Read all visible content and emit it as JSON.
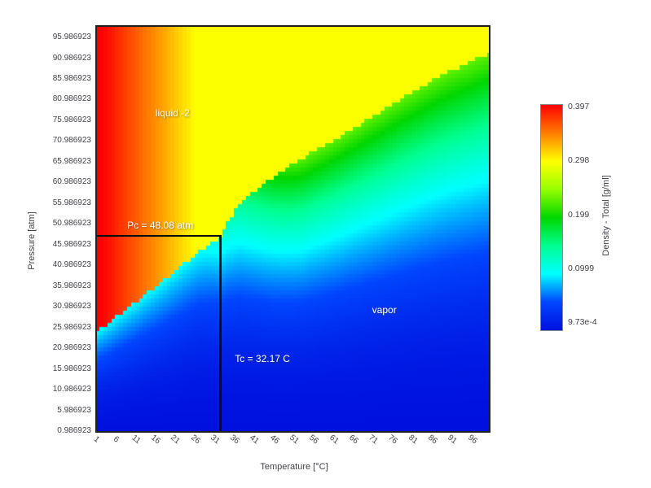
{
  "chart_data": {
    "type": "heatmap",
    "title": "",
    "xlabel": "Temperature [°C]",
    "ylabel": "Pressure [atm]",
    "x_tick_labels": [
      "1",
      "6",
      "11",
      "16",
      "21",
      "26",
      "31",
      "36",
      "41",
      "46",
      "51",
      "56",
      "61",
      "66",
      "71",
      "76",
      "81",
      "86",
      "91",
      "96"
    ],
    "y_tick_labels": [
      "95.986923",
      "90.986923",
      "85.986923",
      "80.986923",
      "75.986923",
      "70.986923",
      "65.986923",
      "60.986923",
      "55.986923",
      "50.986923",
      "45.986923",
      "40.986923",
      "35.986923",
      "30.986923",
      "25.986923",
      "20.986923",
      "15.986923",
      "10.986923",
      "5.986923",
      "0.986923"
    ],
    "x_range_c": [
      1,
      100
    ],
    "y_range_atm": [
      0.986923,
      98.54
    ],
    "grid": false,
    "legend_position": "none",
    "annotations": [
      {
        "id": "liquid",
        "text": "liquid -2",
        "T_c": 20.1,
        "P_atm": 77.7
      },
      {
        "id": "pc",
        "text": "Pc = 48.08 atm",
        "T_c": 17.0,
        "P_atm": 50.6
      },
      {
        "id": "tc",
        "text": "Tc = 32.17 C",
        "T_c": 42.8,
        "P_atm": 18.4
      },
      {
        "id": "vapor",
        "text": "vapor",
        "T_c": 73.6,
        "P_atm": 30.2
      }
    ],
    "critical_point": {
      "Tc_c": 32.17,
      "Pc_atm": 48.08
    },
    "phase_boundary_T_Patm": [
      [
        1,
        25.2
      ],
      [
        6,
        28.8
      ],
      [
        11,
        32.4
      ],
      [
        16,
        36.1
      ],
      [
        21,
        39.9
      ],
      [
        26,
        43.8
      ],
      [
        30,
        46.6
      ],
      [
        32.17,
        48.08
      ],
      [
        34,
        51.5
      ],
      [
        37.2,
        56.0
      ],
      [
        42,
        60.0
      ],
      [
        48,
        64.0
      ],
      [
        55,
        68.2
      ],
      [
        62.9,
        72.4
      ],
      [
        69.1,
        76.1
      ],
      [
        78.4,
        81.6
      ],
      [
        88,
        87.0
      ],
      [
        101,
        92.6
      ]
    ],
    "density_field": {
      "units": "g/ml",
      "min": 0,
      "max": 0.397,
      "liquid_rho_intercept": 0.406,
      "liquid_rho_slope_per_c": 0.0042,
      "liquid_rho_plateau": 0.2962,
      "vapor_rho_at_boundary_min": 0.1,
      "vapor_rho_at_boundary_span": 0.13,
      "vapor_boundary_ramp_start_c": 25,
      "vapor_boundary_ramp_width_c": 30,
      "vapor_pressure_exponent": 2.1,
      "grid_step_T_c": 1,
      "grid_step_P_bar": 1,
      "bar_to_atm": 0.986923
    },
    "colormap_stops": [
      [
        0.0,
        [
          0,
          17,
          223
        ]
      ],
      [
        0.125,
        [
          0,
          70,
          255
        ]
      ],
      [
        0.25,
        [
          0,
          255,
          255
        ]
      ],
      [
        0.375,
        [
          0,
          255,
          145
        ]
      ],
      [
        0.5,
        [
          0,
          215,
          0
        ]
      ],
      [
        0.625,
        [
          150,
          255,
          0
        ]
      ],
      [
        0.75,
        [
          255,
          255,
          0
        ]
      ],
      [
        0.875,
        [
          255,
          125,
          0
        ]
      ],
      [
        1.0,
        [
          255,
          0,
          0
        ]
      ]
    ],
    "colorbar": {
      "label": "Density - Total [g/ml]",
      "tick_labels": [
        "0.397",
        "0.298",
        "0.199",
        "0.0999",
        "9.73e-4"
      ],
      "tick_values": [
        0.397,
        0.298,
        0.199,
        0.0999,
        0.000973
      ],
      "min": 0,
      "max": 0.397
    }
  }
}
